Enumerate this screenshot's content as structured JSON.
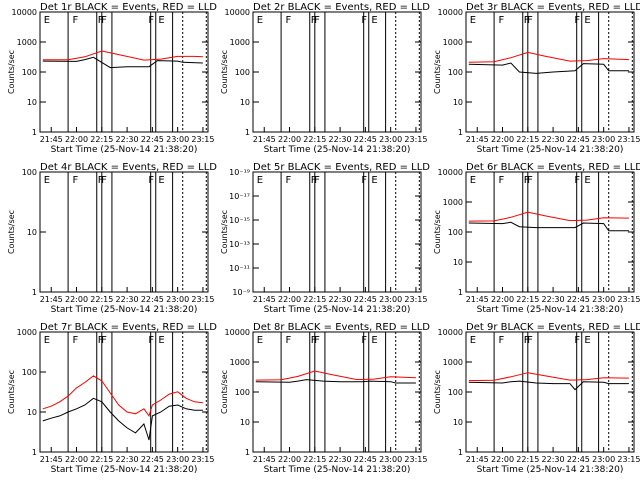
{
  "figure": {
    "start_time_label": "Start Time (25-Nov-14 21:38:20)",
    "ylabel": "Counts/sec",
    "x_tick_labels": [
      "21:45",
      "22:00",
      "22:15",
      "22:30",
      "22:45",
      "23:00",
      "23:15"
    ],
    "colors": {
      "events": "#000000",
      "lld": "#ff0000"
    }
  },
  "chart_data": [
    {
      "type": "line",
      "title": "Det 1r BLACK = Events, RED = LLD",
      "xlabel": "Start Time (25-Nov-14 21:38:20)",
      "ylabel": "Counts/sec",
      "x_range": [
        "21:38",
        "23:18"
      ],
      "y_scale": "log",
      "ylim": [
        1,
        10000
      ],
      "y_ticks": [
        "1",
        "10",
        "100",
        "1000",
        "10000"
      ],
      "flags": [
        {
          "time": "21:40",
          "label": "E"
        },
        {
          "time": "21:57",
          "label": "F"
        },
        {
          "time": "22:12",
          "label": "F"
        },
        {
          "time": "22:14",
          "label": "F"
        },
        {
          "time": "22:42",
          "label": "F"
        },
        {
          "time": "22:48",
          "label": "E"
        }
      ],
      "series": [
        {
          "values": [
            [
              "21:40",
              230
            ],
            [
              "22:00",
              225
            ],
            [
              "22:05",
              260
            ],
            [
              "22:10",
              310
            ],
            [
              "22:20",
              140
            ],
            [
              "22:30",
              150
            ],
            [
              "22:43",
              150
            ],
            [
              "22:48",
              240
            ],
            [
              "23:00",
              230
            ],
            [
              "23:03",
              210
            ],
            [
              "23:15",
              200
            ]
          ]
        },
        {
          "values": [
            [
              "21:40",
              255
            ],
            [
              "21:55",
              255
            ],
            [
              "22:05",
              320
            ],
            [
              "22:15",
              500
            ],
            [
              "22:25",
              380
            ],
            [
              "22:40",
              250
            ],
            [
              "22:50",
              270
            ],
            [
              "23:00",
              330
            ],
            [
              "23:10",
              330
            ],
            [
              "23:15",
              320
            ]
          ]
        }
      ]
    },
    {
      "type": "line",
      "title": "Det 2r BLACK = Events, RED = LLD",
      "xlabel": "Start Time (25-Nov-14 21:38:20)",
      "ylabel": "Counts/sec",
      "x_range": [
        "21:38",
        "23:18"
      ],
      "y_scale": "log",
      "ylim": [
        1,
        10000
      ],
      "y_ticks": [
        "1",
        "10",
        "100",
        "1000",
        "10000"
      ],
      "flags": [
        {
          "time": "21:40",
          "label": "E"
        },
        {
          "time": "21:57",
          "label": "F"
        },
        {
          "time": "22:12",
          "label": "F"
        },
        {
          "time": "22:14",
          "label": "F"
        },
        {
          "time": "22:42",
          "label": "F"
        },
        {
          "time": "22:48",
          "label": "E"
        }
      ],
      "series": []
    },
    {
      "type": "line",
      "title": "Det 3r BLACK = Events, RED = LLD",
      "xlabel": "Start Time (25-Nov-14 21:38:20)",
      "ylabel": "Counts/sec",
      "x_range": [
        "21:38",
        "23:18"
      ],
      "y_scale": "log",
      "ylim": [
        1,
        10000
      ],
      "y_ticks": [
        "1",
        "10",
        "100",
        "1000",
        "10000"
      ],
      "flags": [
        {
          "time": "21:40",
          "label": "E"
        },
        {
          "time": "21:57",
          "label": "F"
        },
        {
          "time": "22:12",
          "label": "F"
        },
        {
          "time": "22:14",
          "label": "F"
        },
        {
          "time": "22:42",
          "label": "F"
        },
        {
          "time": "22:48",
          "label": "E"
        }
      ],
      "series": [
        {
          "values": [
            [
              "21:40",
              180
            ],
            [
              "22:00",
              170
            ],
            [
              "22:05",
              200
            ],
            [
              "22:10",
              100
            ],
            [
              "22:20",
              90
            ],
            [
              "22:30",
              100
            ],
            [
              "22:43",
              110
            ],
            [
              "22:48",
              190
            ],
            [
              "23:00",
              180
            ],
            [
              "23:03",
              110
            ],
            [
              "23:15",
              110
            ]
          ]
        },
        {
          "values": [
            [
              "21:40",
              210
            ],
            [
              "21:55",
              220
            ],
            [
              "22:05",
              300
            ],
            [
              "22:15",
              450
            ],
            [
              "22:25",
              340
            ],
            [
              "22:40",
              230
            ],
            [
              "22:50",
              240
            ],
            [
              "23:00",
              280
            ],
            [
              "23:15",
              260
            ]
          ]
        }
      ]
    },
    {
      "type": "line",
      "title": "Det 4r BLACK = Events, RED = LLD",
      "xlabel": "Start Time (25-Nov-14 21:38:20)",
      "ylabel": "Counts/sec",
      "x_range": [
        "21:38",
        "23:18"
      ],
      "y_scale": "log",
      "ylim": [
        1,
        100
      ],
      "y_ticks": [
        "1",
        "10",
        "100"
      ],
      "flags": [
        {
          "time": "21:40",
          "label": "E"
        },
        {
          "time": "21:57",
          "label": "F"
        },
        {
          "time": "22:12",
          "label": "F"
        },
        {
          "time": "22:14",
          "label": "F"
        },
        {
          "time": "22:42",
          "label": "F"
        },
        {
          "time": "22:48",
          "label": "E"
        }
      ],
      "series": []
    },
    {
      "type": "line",
      "title": "Det 5r BLACK = Events, RED = LLD",
      "xlabel": "Start Time (25-Nov-14 21:38:20)",
      "ylabel": "Counts/sec",
      "x_range": [
        "21:38",
        "23:18"
      ],
      "y_scale": "log",
      "ylim": [
        1e-19,
        1e-09
      ],
      "y_ticks": [
        "10⁻⁹",
        "10⁻¹¹",
        "10⁻¹³",
        "10⁻¹⁵",
        "10⁻¹⁷",
        "10⁻¹⁹"
      ],
      "flags": [
        {
          "time": "21:40",
          "label": "E"
        },
        {
          "time": "21:57",
          "label": "F"
        },
        {
          "time": "22:12",
          "label": "F"
        },
        {
          "time": "22:14",
          "label": "F"
        },
        {
          "time": "22:42",
          "label": "F"
        },
        {
          "time": "22:48",
          "label": "E"
        }
      ],
      "series": []
    },
    {
      "type": "line",
      "title": "Det 6r BLACK = Events, RED = LLD",
      "xlabel": "Start Time (25-Nov-14 21:38:20)",
      "ylabel": "Counts/sec",
      "x_range": [
        "21:38",
        "23:18"
      ],
      "y_scale": "log",
      "ylim": [
        1,
        10000
      ],
      "y_ticks": [
        "1",
        "10",
        "100",
        "1000",
        "10000"
      ],
      "flags": [
        {
          "time": "21:40",
          "label": "E"
        },
        {
          "time": "21:57",
          "label": "F"
        },
        {
          "time": "22:12",
          "label": "F"
        },
        {
          "time": "22:14",
          "label": "F"
        },
        {
          "time": "22:42",
          "label": "F"
        },
        {
          "time": "22:48",
          "label": "E"
        }
      ],
      "series": [
        {
          "values": [
            [
              "21:40",
              200
            ],
            [
              "22:00",
              190
            ],
            [
              "22:05",
              210
            ],
            [
              "22:10",
              150
            ],
            [
              "22:20",
              140
            ],
            [
              "22:30",
              140
            ],
            [
              "22:43",
              140
            ],
            [
              "22:48",
              200
            ],
            [
              "23:00",
              190
            ],
            [
              "23:03",
              110
            ],
            [
              "23:15",
              110
            ]
          ]
        },
        {
          "values": [
            [
              "21:40",
              230
            ],
            [
              "21:55",
              235
            ],
            [
              "22:05",
              310
            ],
            [
              "22:15",
              460
            ],
            [
              "22:25",
              350
            ],
            [
              "22:40",
              240
            ],
            [
              "22:50",
              250
            ],
            [
              "23:00",
              300
            ],
            [
              "23:15",
              290
            ]
          ]
        }
      ]
    },
    {
      "type": "line",
      "title": "Det 7r BLACK = Events, RED = LLD",
      "xlabel": "Start Time (25-Nov-14 21:38:20)",
      "ylabel": "Counts/sec",
      "x_range": [
        "21:38",
        "23:18"
      ],
      "y_scale": "log",
      "ylim": [
        1,
        1000
      ],
      "y_ticks": [
        "1",
        "10",
        "100",
        "1000"
      ],
      "flags": [
        {
          "time": "21:40",
          "label": "E"
        },
        {
          "time": "21:57",
          "label": "F"
        },
        {
          "time": "22:12",
          "label": "F"
        },
        {
          "time": "22:14",
          "label": "F"
        },
        {
          "time": "22:42",
          "label": "F"
        },
        {
          "time": "22:48",
          "label": "E"
        }
      ],
      "series": [
        {
          "values": [
            [
              "21:40",
              6
            ],
            [
              "21:45",
              7
            ],
            [
              "21:50",
              8
            ],
            [
              "21:55",
              10
            ],
            [
              "22:00",
              12
            ],
            [
              "22:05",
              15
            ],
            [
              "22:10",
              22
            ],
            [
              "22:15",
              18
            ],
            [
              "22:20",
              10
            ],
            [
              "22:25",
              6
            ],
            [
              "22:30",
              4
            ],
            [
              "22:35",
              3
            ],
            [
              "22:40",
              5
            ],
            [
              "22:43",
              2
            ],
            [
              "22:45",
              8
            ],
            [
              "22:50",
              10
            ],
            [
              "22:55",
              14
            ],
            [
              "23:00",
              15
            ],
            [
              "23:05",
              12
            ],
            [
              "23:10",
              11
            ],
            [
              "23:15",
              11
            ]
          ]
        },
        {
          "values": [
            [
              "21:40",
              12
            ],
            [
              "21:45",
              14
            ],
            [
              "21:50",
              18
            ],
            [
              "21:55",
              25
            ],
            [
              "22:00",
              40
            ],
            [
              "22:05",
              55
            ],
            [
              "22:10",
              80
            ],
            [
              "22:15",
              60
            ],
            [
              "22:20",
              30
            ],
            [
              "22:25",
              15
            ],
            [
              "22:30",
              10
            ],
            [
              "22:35",
              9
            ],
            [
              "22:40",
              12
            ],
            [
              "22:43",
              8
            ],
            [
              "22:45",
              15
            ],
            [
              "22:50",
              20
            ],
            [
              "22:55",
              28
            ],
            [
              "23:00",
              32
            ],
            [
              "23:05",
              22
            ],
            [
              "23:10",
              18
            ],
            [
              "23:15",
              17
            ]
          ]
        }
      ]
    },
    {
      "type": "line",
      "title": "Det 8r BLACK = Events, RED = LLD",
      "xlabel": "Start Time (25-Nov-14 21:38:20)",
      "ylabel": "Counts/sec",
      "x_range": [
        "21:38",
        "23:18"
      ],
      "y_scale": "log",
      "ylim": [
        1,
        10000
      ],
      "y_ticks": [
        "1",
        "10",
        "100",
        "1000",
        "10000"
      ],
      "flags": [
        {
          "time": "21:40",
          "label": "E"
        },
        {
          "time": "21:57",
          "label": "F"
        },
        {
          "time": "22:12",
          "label": "F"
        },
        {
          "time": "22:14",
          "label": "F"
        },
        {
          "time": "22:42",
          "label": "F"
        },
        {
          "time": "22:48",
          "label": "E"
        }
      ],
      "series": [
        {
          "values": [
            [
              "21:40",
              220
            ],
            [
              "22:00",
              210
            ],
            [
              "22:05",
              230
            ],
            [
              "22:10",
              260
            ],
            [
              "22:20",
              230
            ],
            [
              "22:30",
              220
            ],
            [
              "22:43",
              220
            ],
            [
              "22:48",
              230
            ],
            [
              "23:00",
              220
            ],
            [
              "23:03",
              200
            ],
            [
              "23:15",
              200
            ]
          ]
        },
        {
          "values": [
            [
              "21:40",
              250
            ],
            [
              "21:55",
              255
            ],
            [
              "22:05",
              330
            ],
            [
              "22:15",
              500
            ],
            [
              "22:25",
              380
            ],
            [
              "22:40",
              260
            ],
            [
              "22:50",
              270
            ],
            [
              "23:00",
              320
            ],
            [
              "23:15",
              300
            ]
          ]
        }
      ]
    },
    {
      "type": "line",
      "title": "Det 9r BLACK = Events, RED = LLD",
      "xlabel": "Start Time (25-Nov-14 21:38:20)",
      "ylabel": "Counts/sec",
      "x_range": [
        "21:38",
        "23:18"
      ],
      "y_scale": "log",
      "ylim": [
        1,
        10000
      ],
      "y_ticks": [
        "1",
        "10",
        "100",
        "1000",
        "10000"
      ],
      "flags": [
        {
          "time": "21:40",
          "label": "E"
        },
        {
          "time": "21:57",
          "label": "F"
        },
        {
          "time": "22:12",
          "label": "F"
        },
        {
          "time": "22:14",
          "label": "F"
        },
        {
          "time": "22:42",
          "label": "F"
        },
        {
          "time": "22:48",
          "label": "E"
        }
      ],
      "series": [
        {
          "values": [
            [
              "21:40",
              210
            ],
            [
              "22:00",
              200
            ],
            [
              "22:05",
              220
            ],
            [
              "22:10",
              230
            ],
            [
              "22:20",
              200
            ],
            [
              "22:30",
              190
            ],
            [
              "22:40",
              190
            ],
            [
              "22:43",
              120
            ],
            [
              "22:48",
              220
            ],
            [
              "23:00",
              210
            ],
            [
              "23:03",
              190
            ],
            [
              "23:15",
              190
            ]
          ]
        },
        {
          "values": [
            [
              "21:40",
              240
            ],
            [
              "21:55",
              245
            ],
            [
              "22:05",
              320
            ],
            [
              "22:15",
              440
            ],
            [
              "22:25",
              350
            ],
            [
              "22:40",
              250
            ],
            [
              "22:50",
              260
            ],
            [
              "23:00",
              300
            ],
            [
              "23:15",
              290
            ]
          ]
        }
      ]
    }
  ]
}
